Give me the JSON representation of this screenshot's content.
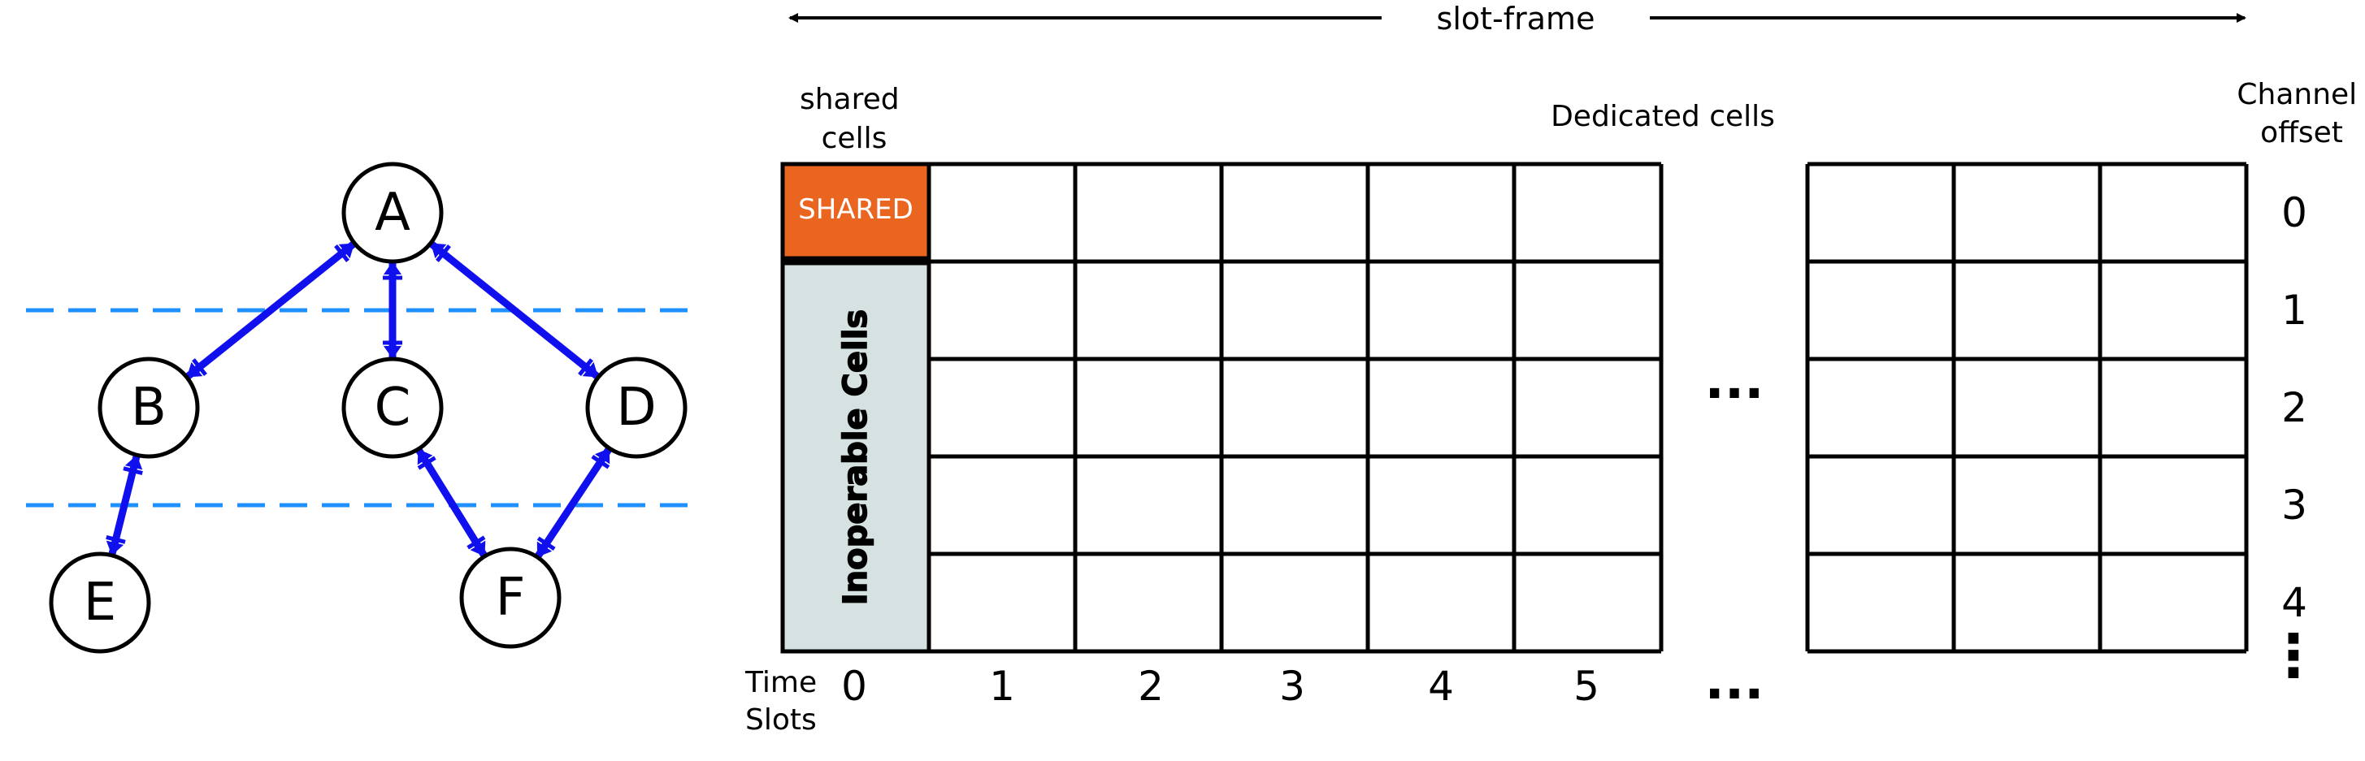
{
  "colors": {
    "edge": "#1010ee",
    "dashed_level": "#1e90ff",
    "shared_fill": "#ea6620",
    "inoperable_fill": "#d6e2e2",
    "grid": "#000000"
  },
  "tree": {
    "nodes": [
      {
        "id": "A",
        "label": "A"
      },
      {
        "id": "B",
        "label": "B"
      },
      {
        "id": "C",
        "label": "C"
      },
      {
        "id": "D",
        "label": "D"
      },
      {
        "id": "E",
        "label": "E"
      },
      {
        "id": "F",
        "label": "F"
      }
    ],
    "edges": [
      {
        "from": "B",
        "to": "A"
      },
      {
        "from": "C",
        "to": "A"
      },
      {
        "from": "D",
        "to": "A"
      },
      {
        "from": "E",
        "to": "B"
      },
      {
        "from": "F",
        "to": "C"
      },
      {
        "from": "F",
        "to": "D"
      }
    ]
  },
  "slotframe": {
    "label": "slot-frame",
    "shared_header": "shared cells",
    "dedicated_header": "Dedicated cells",
    "channel_header": "Channel offset",
    "shared_cell_label": "SHARED",
    "inoperable_label": "Inoperable Cells",
    "time_slots_label": "Time Slots",
    "time_slot_numbers": [
      "0",
      "1",
      "2",
      "3",
      "4",
      "5"
    ],
    "channel_offsets": [
      "0",
      "1",
      "2",
      "3",
      "4"
    ],
    "ellipsis": "...",
    "vertical_ellipsis": "⋮"
  }
}
